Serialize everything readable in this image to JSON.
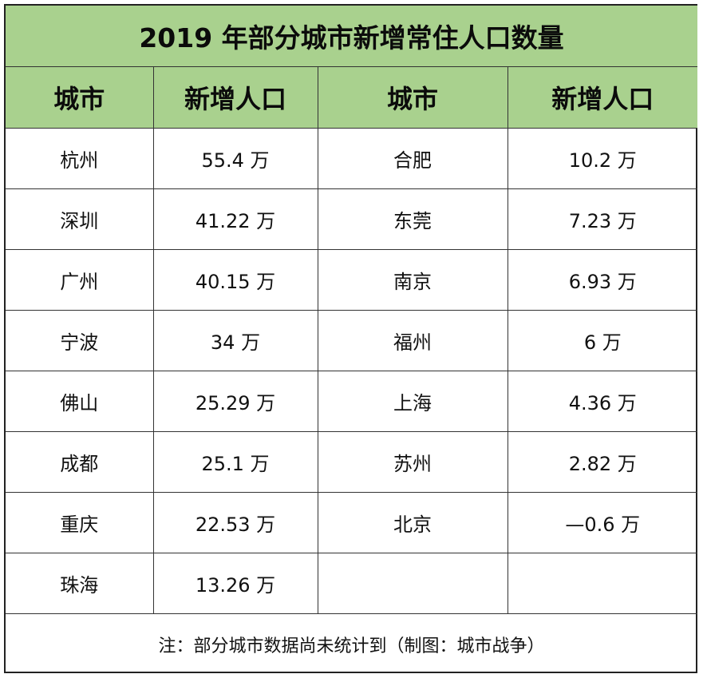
{
  "title": "2019 年部分城市新增常住人口数量",
  "headers": {
    "city_left": "城市",
    "new_left": "新增人口",
    "city_right": "城市",
    "new_right": "新增人口"
  },
  "rows": [
    {
      "city_left": "杭州",
      "value_left": "55.4 万",
      "city_right": "合肥",
      "value_right": "10.2 万"
    },
    {
      "city_left": "深圳",
      "value_left": "41.22 万",
      "city_right": "东莞",
      "value_right": "7.23 万"
    },
    {
      "city_left": "广州",
      "value_left": "40.15 万",
      "city_right": "南京",
      "value_right": "6.93 万"
    },
    {
      "city_left": "宁波",
      "value_left": "34 万",
      "city_right": "福州",
      "value_right": "6 万"
    },
    {
      "city_left": "佛山",
      "value_left": "25.29 万",
      "city_right": "上海",
      "value_right": "4.36 万"
    },
    {
      "city_left": "成都",
      "value_left": "25.1 万",
      "city_right": "苏州",
      "value_right": "2.82 万"
    },
    {
      "city_left": "重庆",
      "value_left": "22.53 万",
      "city_right": "北京",
      "value_right": "—0.6 万"
    },
    {
      "city_left": "珠海",
      "value_left": "13.26 万",
      "city_right": "",
      "value_right": ""
    }
  ],
  "note": "注：部分城市数据尚未统计到（制图：城市战争）",
  "colors": {
    "header_bg": "#a9d18e",
    "border": "#333333"
  }
}
